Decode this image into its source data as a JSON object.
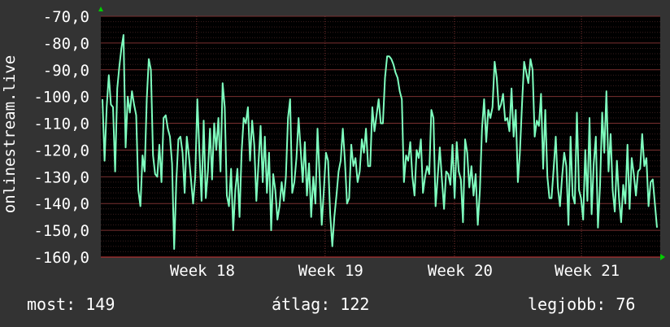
{
  "chart_data": {
    "type": "line",
    "ylabel": "onlinestream.live",
    "ylim": [
      -160,
      -70
    ],
    "y_ticks": [
      "-70,0",
      "-80,0",
      "-90,0",
      "-100,0",
      "-110,0",
      "-120,0",
      "-130,0",
      "-140,0",
      "-150,0",
      "-160,0"
    ],
    "x_ticks": [
      {
        "label": "Week 18",
        "pos": 0.197
      },
      {
        "label": "Week 19",
        "pos": 0.461
      },
      {
        "label": "Week 20",
        "pos": 0.727
      },
      {
        "label": "Week 21",
        "pos": 0.988
      }
    ],
    "xlim": [
      0,
      1.15
    ],
    "grid": true,
    "colors": {
      "line": "#7fffbf",
      "plot_bg": "#000000",
      "page_bg": "#333333",
      "grid": "#5a2a2a",
      "axis_arrow": "#00cc00"
    },
    "series": [
      {
        "values": [
          -101,
          -124,
          -104,
          -92,
          -103,
          -104,
          -128,
          -97,
          -89,
          -82,
          -77,
          -119,
          -100,
          -106,
          -98,
          -103,
          -107,
          -135,
          -141,
          -122,
          -128,
          -101,
          -86,
          -90,
          -122,
          -129,
          -130,
          -118,
          -132,
          -108,
          -107,
          -112,
          -115,
          -125,
          -157,
          -132,
          -116,
          -115,
          -121,
          -136,
          -115,
          -122,
          -131,
          -140,
          -130,
          -101,
          -121,
          -139,
          -109,
          -138,
          -128,
          -112,
          -131,
          -110,
          -120,
          -108,
          -128,
          -95,
          -104,
          -137,
          -141,
          -127,
          -150,
          -135,
          -127,
          -145,
          -121,
          -108,
          -110,
          -104,
          -124,
          -109,
          -118,
          -139,
          -125,
          -111,
          -132,
          -115,
          -136,
          -121,
          -150,
          -129,
          -135,
          -146,
          -141,
          -132,
          -139,
          -130,
          -108,
          -101,
          -136,
          -132,
          -123,
          -108,
          -120,
          -132,
          -117,
          -137,
          -125,
          -145,
          -130,
          -140,
          -112,
          -130,
          -148,
          -135,
          -121,
          -124,
          -144,
          -156,
          -145,
          -137,
          -128,
          -124,
          -112,
          -124,
          -140,
          -138,
          -118,
          -126,
          -123,
          -132,
          -128,
          -116,
          -121,
          -112,
          -126,
          -126,
          -104,
          -113,
          -107,
          -101,
          -110,
          -110,
          -93,
          -85,
          -85,
          -86,
          -88,
          -91,
          -93,
          -98,
          -101,
          -132,
          -122,
          -124,
          -117,
          -130,
          -137,
          -120,
          -123,
          -116,
          -136,
          -130,
          -126,
          -129,
          -105,
          -108,
          -141,
          -130,
          -119,
          -131,
          -142,
          -128,
          -129,
          -133,
          -118,
          -138,
          -117,
          -128,
          -131,
          -147,
          -116,
          -121,
          -134,
          -126,
          -137,
          -129,
          -148,
          -135,
          -112,
          -101,
          -117,
          -105,
          -108,
          -104,
          -87,
          -93,
          -105,
          -103,
          -99,
          -109,
          -108,
          -113,
          -97,
          -115,
          -105,
          -132,
          -121,
          -103,
          -87,
          -91,
          -95,
          -86,
          -90,
          -115,
          -109,
          -111,
          -99,
          -127,
          -105,
          -130,
          -138,
          -138,
          -127,
          -115,
          -134,
          -141,
          -130,
          -121,
          -126,
          -148,
          -115,
          -137,
          -140,
          -106,
          -135,
          -138,
          -146,
          -120,
          -139,
          -108,
          -144,
          -125,
          -115,
          -149,
          -133,
          -106,
          -121,
          -98,
          -128,
          -114,
          -135,
          -143,
          -124,
          -138,
          -147,
          -133,
          -140,
          -118,
          -142,
          -123,
          -129,
          -137,
          -128,
          -127,
          -114,
          -126,
          -123,
          -141,
          -132,
          -131,
          -140,
          -149
        ]
      }
    ]
  },
  "stats": {
    "current": "most: 149",
    "average": "átlag: 122",
    "best": "legjobb: 76"
  }
}
